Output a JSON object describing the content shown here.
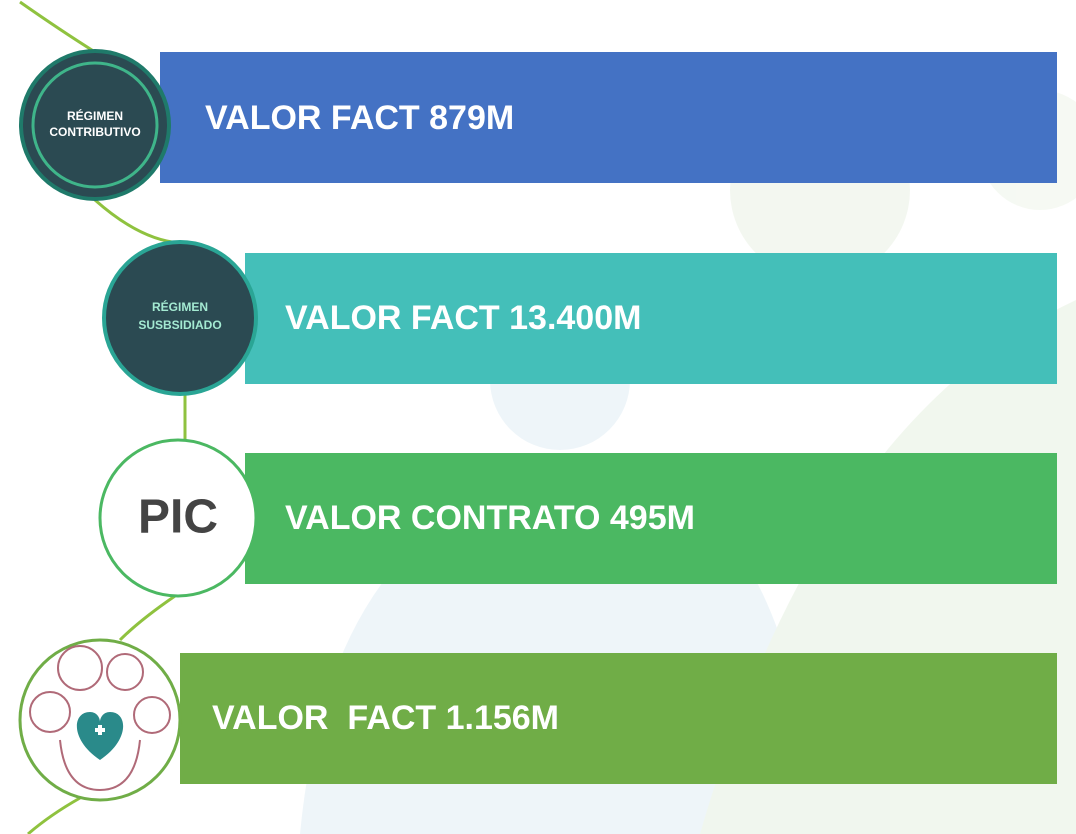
{
  "items": [
    {
      "circle_lines": [
        "RÉGIMEN",
        "CONTRIBUTIVO"
      ],
      "text": "VALOR FACT 879M"
    },
    {
      "circle_lines": [
        "RÉGIMEN",
        "SUSBSIDIADO"
      ],
      "text": "VALOR FACT 13.400M"
    },
    {
      "circle_lines": [
        "PIC"
      ],
      "text": "VALOR CONTRATO 495M"
    },
    {
      "text": "VALOR  FACT 1.156M"
    }
  ]
}
